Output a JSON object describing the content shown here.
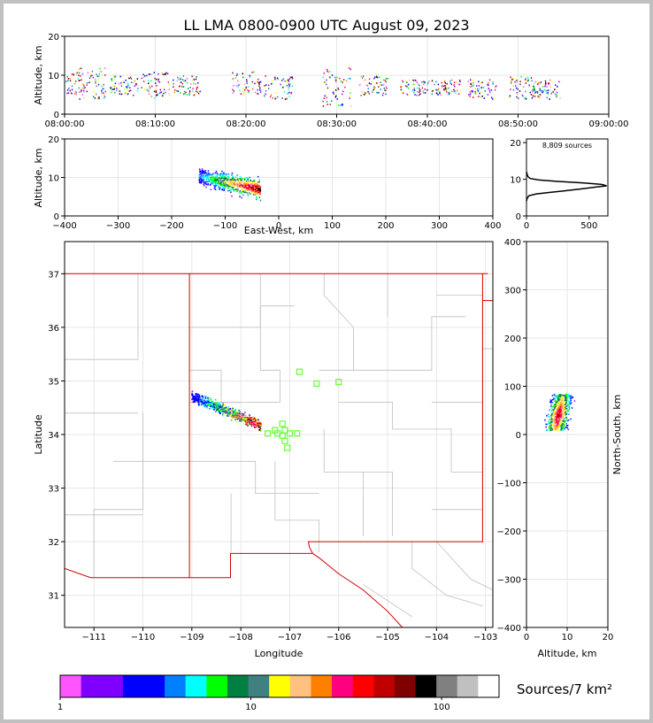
{
  "title": "LL LMA 0800-0900 UTC August 09, 2023",
  "colors": {
    "state_border": "#d40000",
    "county_border": "#bfbfbf",
    "station": "#66ff33",
    "grid": "#e6e6e6"
  },
  "chart_data": [
    {
      "id": "time_height",
      "type": "scatter",
      "ylabel": "Altitude, km",
      "xlabel": "",
      "xlim": [
        "08:00:00",
        "09:00:00"
      ],
      "ylim": [
        0,
        20
      ],
      "xticks": [
        "08:00:00",
        "08:10:00",
        "08:20:00",
        "08:30:00",
        "08:40:00",
        "08:50:00",
        "09:00:00"
      ],
      "yticks": [
        0,
        10,
        20
      ],
      "grid": true,
      "clusters": [
        {
          "t": 0.5,
          "zmin": 5,
          "zmax": 11
        },
        {
          "t": 3.0,
          "zmin": 4,
          "zmax": 12
        },
        {
          "t": 6.5,
          "zmin": 5,
          "zmax": 10
        },
        {
          "t": 10.0,
          "zmin": 4,
          "zmax": 11
        },
        {
          "t": 13.5,
          "zmin": 5,
          "zmax": 10
        },
        {
          "t": 20.0,
          "zmin": 4,
          "zmax": 11
        },
        {
          "t": 23.5,
          "zmin": 4,
          "zmax": 10
        },
        {
          "t": 30.0,
          "zmin": 2,
          "zmax": 12
        },
        {
          "t": 34.0,
          "zmin": 5,
          "zmax": 10
        },
        {
          "t": 38.5,
          "zmin": 5,
          "zmax": 9
        },
        {
          "t": 42.0,
          "zmin": 5,
          "zmax": 9
        },
        {
          "t": 46.0,
          "zmin": 4,
          "zmax": 9
        },
        {
          "t": 50.5,
          "zmin": 4,
          "zmax": 10
        },
        {
          "t": 53.0,
          "zmin": 4,
          "zmax": 9
        }
      ]
    },
    {
      "id": "east_west_altitude",
      "type": "heatmap",
      "xlabel": "East-West, km",
      "ylabel": "Altitude, km",
      "xlim": [
        -400,
        400
      ],
      "ylim": [
        0,
        20
      ],
      "xticks": [
        -400,
        -300,
        -200,
        -100,
        0,
        100,
        200,
        300,
        400
      ],
      "yticks": [
        0,
        10,
        20
      ],
      "grid": true,
      "cluster": {
        "x_from": -150,
        "x_to": -35,
        "z_center": 8,
        "z_spread": 4
      }
    },
    {
      "id": "altitude_histogram",
      "type": "line",
      "annotation": "8,809 sources",
      "xlim": [
        0,
        650
      ],
      "ylim": [
        0,
        21
      ],
      "xticks": [
        0,
        500
      ],
      "yticks": [
        0,
        10,
        20
      ],
      "points": [
        [
          0,
          4
        ],
        [
          5,
          4.8
        ],
        [
          20,
          5.5
        ],
        [
          80,
          6
        ],
        [
          180,
          6.4
        ],
        [
          320,
          6.9
        ],
        [
          450,
          7.4
        ],
        [
          560,
          7.9
        ],
        [
          640,
          8.2
        ],
        [
          600,
          8.6
        ],
        [
          460,
          9
        ],
        [
          260,
          9.4
        ],
        [
          100,
          9.8
        ],
        [
          30,
          10.2
        ],
        [
          12,
          10.7
        ],
        [
          5,
          11.3
        ],
        [
          2,
          12
        ]
      ]
    },
    {
      "id": "plan_view",
      "type": "scatter",
      "xlabel": "Longitude",
      "ylabel": "Latitude",
      "xlim": [
        -111.6,
        -102.85
      ],
      "ylim": [
        30.4,
        37.6
      ],
      "xticks": [
        -111,
        -110,
        -109,
        -108,
        -107,
        -106,
        -105,
        -104,
        -103
      ],
      "yticks": [
        31,
        32,
        33,
        34,
        35,
        36,
        37
      ],
      "grid": true,
      "cluster": {
        "lon_from": -109.0,
        "lat_from": 34.72,
        "lon_to": -107.6,
        "lat_to": 34.18
      },
      "stations": [
        [
          -106.8,
          35.17
        ],
        [
          -106.45,
          34.95
        ],
        [
          -106.0,
          34.98
        ],
        [
          -107.15,
          34.2
        ],
        [
          -107.3,
          34.08
        ],
        [
          -107.45,
          34.02
        ],
        [
          -107.25,
          34.02
        ],
        [
          -107.1,
          34.08
        ],
        [
          -107.15,
          33.98
        ],
        [
          -107.0,
          34.02
        ],
        [
          -106.85,
          34.02
        ],
        [
          -107.1,
          33.88
        ],
        [
          -107.05,
          33.75
        ]
      ]
    },
    {
      "id": "altitude_north_south",
      "type": "heatmap",
      "xlabel": "Altitude, km",
      "ylabel": "North-South, km",
      "xlim": [
        0,
        20
      ],
      "ylim": [
        -400,
        400
      ],
      "xticks": [
        0,
        10,
        20
      ],
      "yticks": [
        400,
        300,
        200,
        100,
        0,
        -100,
        -200,
        -300,
        -400
      ],
      "grid": true,
      "cluster": {
        "z_center": 8,
        "z_spread": 4,
        "y_from": 10,
        "y_to": 85
      }
    },
    {
      "id": "colorbar",
      "type": "bar",
      "label": "Sources/7 km²",
      "tick_labels": [
        "1",
        "10",
        "100"
      ],
      "min": 1,
      "max": 200,
      "colors": [
        "#ff55ff",
        "#8000ff",
        "#8000ff",
        "#0000ff",
        "#0000ff",
        "#0080ff",
        "#00ffff",
        "#00ff00",
        "#008040",
        "#408080",
        "#ffff00",
        "#ffc080",
        "#ff8000",
        "#ff0080",
        "#ff0000",
        "#c00000",
        "#800000",
        "#000000",
        "#808080",
        "#c0c0c0",
        "#ffffff"
      ]
    }
  ]
}
